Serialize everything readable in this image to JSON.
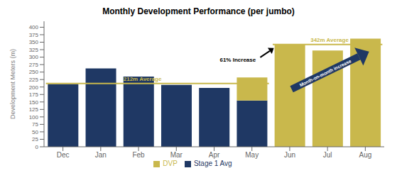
{
  "chart_data": {
    "type": "bar",
    "title": "Monthly Development Performance (per jumbo)",
    "ylabel": "Development Meters (m)",
    "categories": [
      "Dec",
      "Jan",
      "Feb",
      "Mar",
      "Apr",
      "May",
      "Jun",
      "Jul",
      "Aug"
    ],
    "series": [
      {
        "name": "Stage 1 Avg",
        "color": "#1F3864",
        "values": [
          210,
          262,
          235,
          207,
          197,
          155,
          0,
          0,
          0
        ]
      },
      {
        "name": "DVP",
        "color": "#C9B84C",
        "values": [
          0,
          0,
          0,
          0,
          0,
          77,
          342,
          322,
          362
        ]
      }
    ],
    "stacked": true,
    "ylim": [
      0,
      420
    ],
    "yticks": [
      0,
      25,
      50,
      75,
      100,
      125,
      150,
      175,
      200,
      225,
      250,
      275,
      300,
      325,
      350,
      375,
      400
    ],
    "grid": false,
    "legend": "bottom",
    "reference_lines": [
      {
        "value": 212,
        "label": "212m Average",
        "color": "#C9B84C",
        "from": "Dec",
        "to": "May"
      },
      {
        "value": 342,
        "label": "342m Average",
        "color": "#C9B84C",
        "from": "Jun",
        "to": "Aug"
      }
    ],
    "annotations": [
      {
        "text": "61% Increase"
      },
      {
        "text": "Month-on-month increase"
      }
    ]
  }
}
